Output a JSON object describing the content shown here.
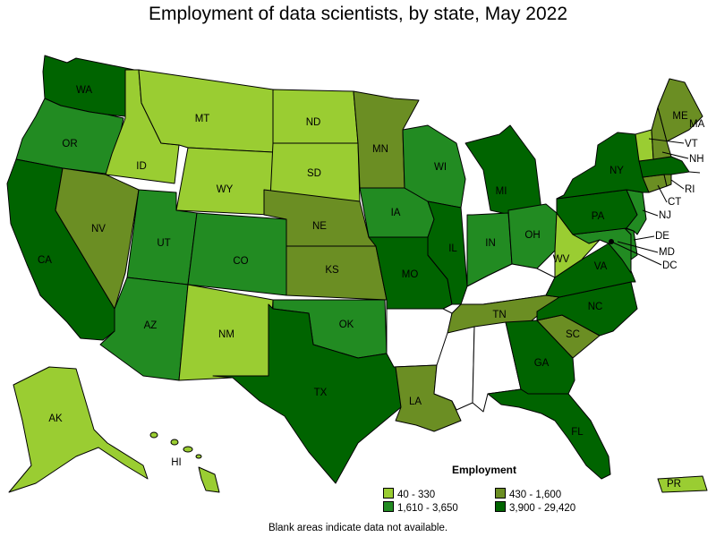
{
  "title": "Employment of data scientists, by state, May 2022",
  "footnote": "Blank areas indicate data not available.",
  "legend": {
    "title": "Employment",
    "items": [
      {
        "label": "40 - 330",
        "color": "#9acd32"
      },
      {
        "label": "430 - 1,600",
        "color": "#6b8e23"
      },
      {
        "label": "1,610 - 3,650",
        "color": "#228b22"
      },
      {
        "label": "3,900 - 29,420",
        "color": "#006400"
      }
    ]
  },
  "blank_color": "#ffffff",
  "map_data": {
    "type": "choropleth",
    "regions": [
      {
        "code": "WA",
        "bin": 3
      },
      {
        "code": "OR",
        "bin": 2
      },
      {
        "code": "CA",
        "bin": 3
      },
      {
        "code": "ID",
        "bin": 0
      },
      {
        "code": "NV",
        "bin": 1
      },
      {
        "code": "MT",
        "bin": 0
      },
      {
        "code": "WY",
        "bin": 0
      },
      {
        "code": "UT",
        "bin": 2
      },
      {
        "code": "AZ",
        "bin": 2
      },
      {
        "code": "CO",
        "bin": 2
      },
      {
        "code": "NM",
        "bin": 0
      },
      {
        "code": "ND",
        "bin": 0
      },
      {
        "code": "SD",
        "bin": 0
      },
      {
        "code": "NE",
        "bin": 1
      },
      {
        "code": "KS",
        "bin": 1
      },
      {
        "code": "OK",
        "bin": 2
      },
      {
        "code": "TX",
        "bin": 3
      },
      {
        "code": "MN",
        "bin": 1
      },
      {
        "code": "IA",
        "bin": 2
      },
      {
        "code": "MO",
        "bin": 3
      },
      {
        "code": "AR",
        "bin": null
      },
      {
        "code": "LA",
        "bin": 1
      },
      {
        "code": "WI",
        "bin": 2
      },
      {
        "code": "IL",
        "bin": 3
      },
      {
        "code": "MI",
        "bin": 3
      },
      {
        "code": "IN",
        "bin": 2
      },
      {
        "code": "OH",
        "bin": 2
      },
      {
        "code": "KY",
        "bin": null
      },
      {
        "code": "TN",
        "bin": 1
      },
      {
        "code": "MS",
        "bin": null
      },
      {
        "code": "AL",
        "bin": null
      },
      {
        "code": "GA",
        "bin": 3
      },
      {
        "code": "FL",
        "bin": 3
      },
      {
        "code": "SC",
        "bin": 1
      },
      {
        "code": "NC",
        "bin": 3
      },
      {
        "code": "VA",
        "bin": 3
      },
      {
        "code": "WV",
        "bin": 0
      },
      {
        "code": "MD",
        "bin": 2
      },
      {
        "code": "DE",
        "bin": 2
      },
      {
        "code": "DC",
        "bin": 3
      },
      {
        "code": "PA",
        "bin": 3
      },
      {
        "code": "NJ",
        "bin": 2
      },
      {
        "code": "NY",
        "bin": 3
      },
      {
        "code": "CT",
        "bin": 1
      },
      {
        "code": "RI",
        "bin": 1
      },
      {
        "code": "MA",
        "bin": 3
      },
      {
        "code": "VT",
        "bin": 0
      },
      {
        "code": "NH",
        "bin": 1
      },
      {
        "code": "ME",
        "bin": 1
      },
      {
        "code": "AK",
        "bin": 0
      },
      {
        "code": "HI",
        "bin": 0
      },
      {
        "code": "PR",
        "bin": 0
      }
    ]
  }
}
